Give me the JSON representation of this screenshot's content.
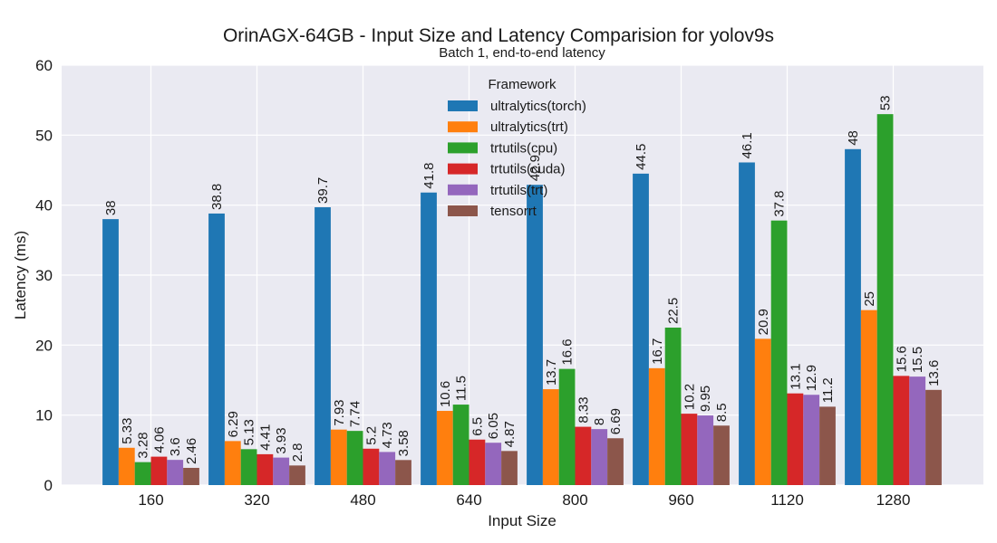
{
  "chart_data": {
    "type": "bar",
    "title": "OrinAGX-64GB - Input Size and Latency Comparision for yolov9s",
    "subtitle": "Batch 1, end-to-end latency",
    "xlabel": "Input Size",
    "ylabel": "Latency (ms)",
    "ylim": [
      0,
      60
    ],
    "yticks": [
      0,
      10,
      20,
      30,
      40,
      50,
      60
    ],
    "grid": true,
    "legend_title": "Framework",
    "legend_position": "top-center",
    "categories": [
      "160",
      "320",
      "480",
      "640",
      "800",
      "960",
      "1120",
      "1280"
    ],
    "series": [
      {
        "name": "ultralytics(torch)",
        "color": "#1f77b4",
        "values": [
          38,
          38.8,
          39.7,
          41.8,
          42.9,
          44.5,
          46.1,
          48
        ],
        "labels": [
          "38",
          "38.8",
          "39.7",
          "41.8",
          "42.9",
          "44.5",
          "46.1",
          "48"
        ]
      },
      {
        "name": "ultralytics(trt)",
        "color": "#ff7f0e",
        "values": [
          5.33,
          6.29,
          7.93,
          10.6,
          13.7,
          16.7,
          20.9,
          25
        ],
        "labels": [
          "5.33",
          "6.29",
          "7.93",
          "10.6",
          "13.7",
          "16.7",
          "20.9",
          "25"
        ]
      },
      {
        "name": "trtutils(cpu)",
        "color": "#2ca02c",
        "values": [
          3.28,
          5.13,
          7.74,
          11.5,
          16.6,
          22.5,
          37.8,
          53
        ],
        "labels": [
          "3.28",
          "5.13",
          "7.74",
          "11.5",
          "16.6",
          "22.5",
          "37.8",
          "53"
        ]
      },
      {
        "name": "trtutils(cuda)",
        "color": "#d62728",
        "values": [
          4.06,
          4.41,
          5.2,
          6.5,
          8.33,
          10.2,
          13.1,
          15.6
        ],
        "labels": [
          "4.06",
          "4.41",
          "5.2",
          "6.5",
          "8.33",
          "10.2",
          "13.1",
          "15.6"
        ]
      },
      {
        "name": "trtutils(trt)",
        "color": "#9467bd",
        "values": [
          3.6,
          3.93,
          4.73,
          6.05,
          8,
          9.95,
          12.9,
          15.5
        ],
        "labels": [
          "3.6",
          "3.93",
          "4.73",
          "6.05",
          "8",
          "9.95",
          "12.9",
          "15.5"
        ]
      },
      {
        "name": "tensorrt",
        "color": "#8c564b",
        "values": [
          2.46,
          2.8,
          3.58,
          4.87,
          6.69,
          8.5,
          11.2,
          13.6
        ],
        "labels": [
          "2.46",
          "2.8",
          "3.58",
          "4.87",
          "6.69",
          "8.5",
          "11.2",
          "13.6"
        ]
      }
    ]
  }
}
